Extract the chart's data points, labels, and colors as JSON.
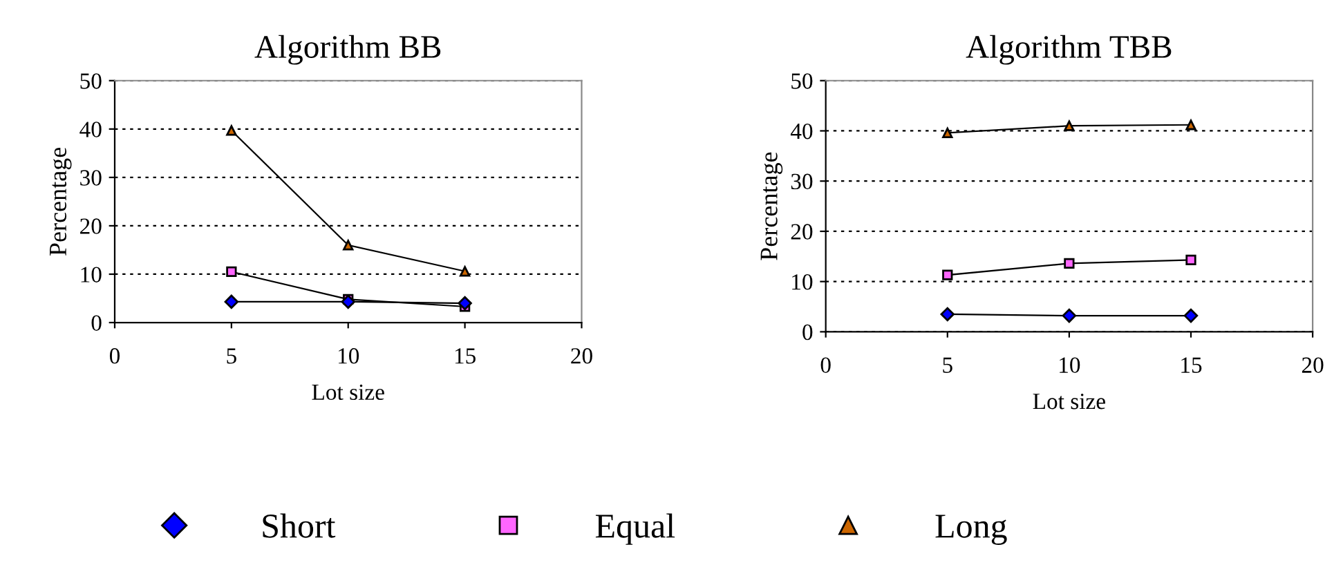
{
  "chart_data": [
    {
      "type": "line",
      "title": "Algorithm BB",
      "xlabel": "Lot size",
      "ylabel": "Percentage",
      "x": [
        5,
        10,
        15
      ],
      "xlim": [
        0,
        20
      ],
      "xticks": [
        0,
        5,
        10,
        15,
        20
      ],
      "ylim": [
        0,
        50
      ],
      "yticks": [
        0,
        10,
        20,
        30,
        40,
        50
      ],
      "grid": "y",
      "legend": "bottom",
      "series": [
        {
          "name": "Short",
          "color": "#0000ff",
          "marker": "diamond",
          "values": [
            4.3,
            4.3,
            4.0
          ]
        },
        {
          "name": "Equal",
          "color": "#ff66ff",
          "marker": "square",
          "values": [
            10.5,
            4.8,
            3.3
          ]
        },
        {
          "name": "Long",
          "color": "#cc6600",
          "marker": "triangle",
          "values": [
            39.7,
            16,
            10.6
          ]
        }
      ]
    },
    {
      "type": "line",
      "title": "Algorithm TBB",
      "xlabel": "Lot size",
      "ylabel": "Percentage",
      "x": [
        5,
        10,
        15
      ],
      "xlim": [
        0,
        20
      ],
      "xticks": [
        0,
        5,
        10,
        15,
        20
      ],
      "ylim": [
        0,
        50
      ],
      "yticks": [
        0,
        10,
        20,
        30,
        40,
        50
      ],
      "grid": "y",
      "series": [
        {
          "name": "Short",
          "color": "#0000ff",
          "marker": "diamond",
          "values": [
            3.5,
            3.2,
            3.2
          ]
        },
        {
          "name": "Equal",
          "color": "#ff66ff",
          "marker": "square",
          "values": [
            11.3,
            13.6,
            14.3
          ]
        },
        {
          "name": "Long",
          "color": "#cc6600",
          "marker": "triangle",
          "values": [
            39.6,
            41,
            41.2
          ]
        }
      ]
    }
  ]
}
